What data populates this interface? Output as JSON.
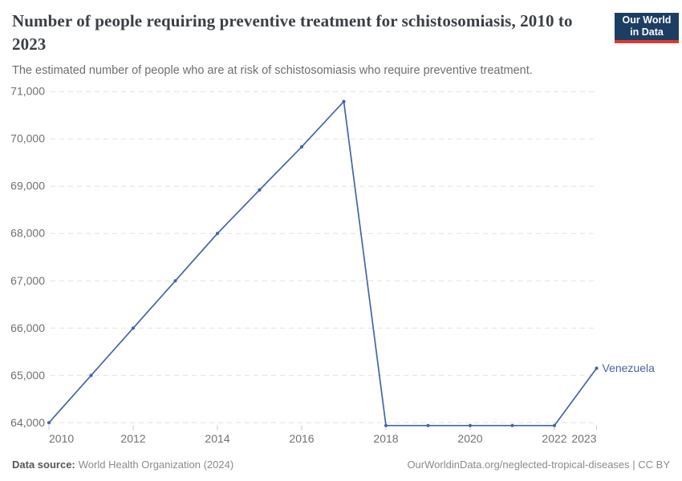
{
  "header": {
    "title": "Number of people requiring preventive treatment for schistosomiasis, 2010 to 2023",
    "subtitle": "The estimated number of people who are at risk of schistosomiasis who require preventive treatment.",
    "logo": {
      "line1": "Our World",
      "line2": "in Data",
      "bg_color": "#1d3d63",
      "underline_color": "#dc3a32"
    }
  },
  "chart_data": {
    "type": "line",
    "title": "Number of people requiring preventive treatment for schistosomiasis, 2010 to 2023",
    "xlabel": "",
    "ylabel": "",
    "x": [
      2010,
      2011,
      2012,
      2013,
      2014,
      2015,
      2016,
      2017,
      2018,
      2019,
      2020,
      2021,
      2022,
      2023
    ],
    "series": [
      {
        "name": "Venezuela",
        "color": "#4464a8",
        "values": [
          64000,
          65000,
          66000,
          67000,
          68000,
          68920,
          69830,
          70790,
          63940,
          63940,
          63940,
          63940,
          63940,
          65150
        ]
      }
    ],
    "end_label": "Venezuela",
    "xlim": [
      2010,
      2023
    ],
    "ylim": [
      64000,
      71000
    ],
    "x_ticks": [
      {
        "value": 2010,
        "label": "2010"
      },
      {
        "value": 2012,
        "label": "2012"
      },
      {
        "value": 2014,
        "label": "2014"
      },
      {
        "value": 2016,
        "label": "2016"
      },
      {
        "value": 2018,
        "label": "2018"
      },
      {
        "value": 2020,
        "label": "2020"
      },
      {
        "value": 2022,
        "label": "2022"
      },
      {
        "value": 2023,
        "label": "2023"
      }
    ],
    "y_ticks": [
      {
        "value": 64000,
        "label": "64,000"
      },
      {
        "value": 65000,
        "label": "65,000"
      },
      {
        "value": 66000,
        "label": "66,000"
      },
      {
        "value": 67000,
        "label": "67,000"
      },
      {
        "value": 68000,
        "label": "68,000"
      },
      {
        "value": 69000,
        "label": "69,000"
      },
      {
        "value": 70000,
        "label": "70,000"
      },
      {
        "value": 71000,
        "label": "71,000"
      }
    ],
    "grid": "horizontal-dashed",
    "legend_position": "end-of-line-label",
    "colors": {
      "grid": "#e1e1e1",
      "tick": "#c9c9c9",
      "tick_label": "#717171"
    }
  },
  "footer": {
    "source_label": "Data source:",
    "source_value": "World Health Organization (2024)",
    "attribution": "OurWorldinData.org/neglected-tropical-diseases | CC BY"
  }
}
